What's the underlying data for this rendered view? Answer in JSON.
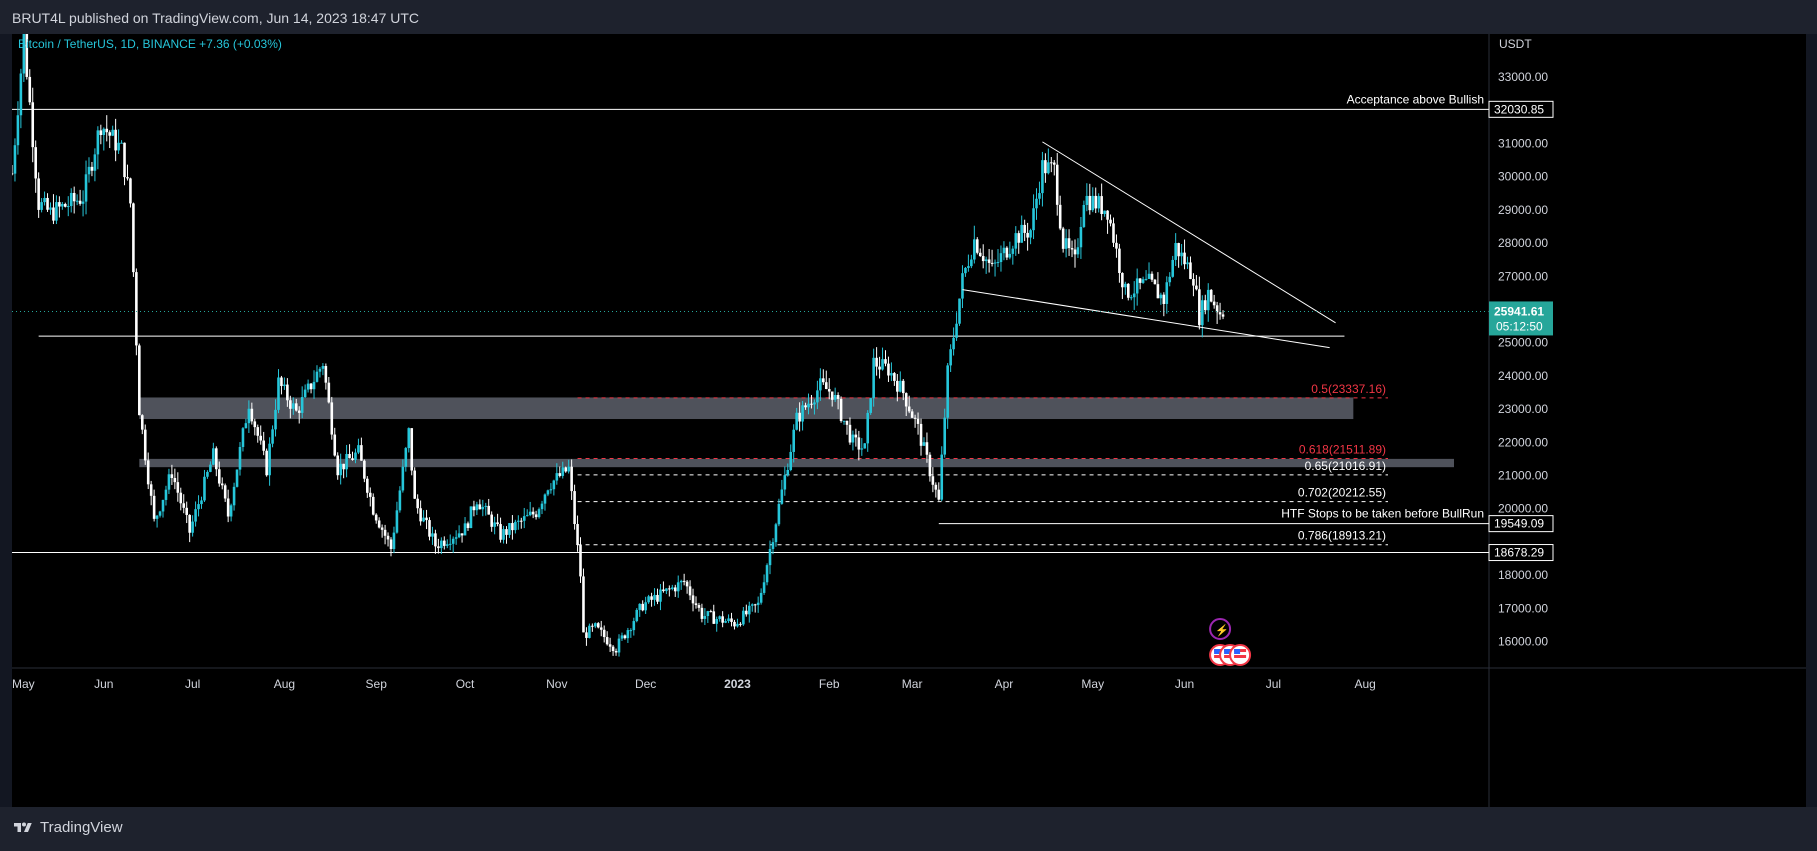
{
  "header": {
    "published": "BRUT4L published on TradingView.com, Jun 14, 2023 18:47 UTC"
  },
  "footer": {
    "brand": "TradingView"
  },
  "symbol_line": "Bitcoin / TetherUS, 1D, BINANCE  +7.36 (+0.03%)",
  "price_axis_unit": "USDT",
  "colors": {
    "up": "#26c6da",
    "down": "#ffffff",
    "background": "#000000",
    "fib_red": "#f23645",
    "zone": "#5d606b"
  },
  "chart_data": {
    "type": "candlestick",
    "symbol": "Bitcoin / TetherUS",
    "interval": "1D",
    "exchange": "BINANCE",
    "change": "+7.36 (+0.03%)",
    "y_axis": {
      "unit": "USDT",
      "ylim": [
        15200,
        34300
      ],
      "ticks": [
        "33000.00",
        "31000.00",
        "30000.00",
        "29000.00",
        "28000.00",
        "27000.00",
        "25000.00",
        "24000.00",
        "23000.00",
        "22000.00",
        "21000.00",
        "20000.00",
        "18000.00",
        "17000.00",
        "16000.00"
      ],
      "tick_values": [
        33000,
        31000,
        30000,
        29000,
        28000,
        27000,
        25000,
        24000,
        23000,
        22000,
        21000,
        20000,
        18000,
        17000,
        16000
      ]
    },
    "x_axis": {
      "labels": [
        "May",
        "Jun",
        "Jul",
        "Aug",
        "Sep",
        "Oct",
        "Nov",
        "Dec",
        "2023",
        "Feb",
        "Mar",
        "Apr",
        "May",
        "Jun",
        "Jul",
        "Aug"
      ],
      "dates": [
        "2022-05-01",
        "2022-06-01",
        "2022-07-01",
        "2022-08-01",
        "2022-09-01",
        "2022-10-01",
        "2022-11-01",
        "2022-12-01",
        "2023-01-01",
        "2023-02-01",
        "2023-03-01",
        "2023-04-01",
        "2023-05-01",
        "2023-06-01",
        "2023-07-01",
        "2023-08-01"
      ],
      "range": [
        "2022-05-01",
        "2023-08-31"
      ]
    },
    "current_price": {
      "value": 25941.61,
      "label": "25941.61",
      "countdown": "05:12:50"
    },
    "price_labels": [
      {
        "label": "32030.85",
        "value": 32030.85
      },
      {
        "label": "19549.09",
        "value": 19549.09
      },
      {
        "label": "18678.29",
        "value": 18678.29
      }
    ],
    "horizontal_lines": [
      {
        "value": 32030.85,
        "text": "Acceptance above Bullish",
        "start": "2022-05-01"
      },
      {
        "value": 25200,
        "text": "",
        "start": "2022-05-10",
        "end": "2023-07-25"
      },
      {
        "value": 19549.09,
        "text": "HTF Stops to be taken before BullRun",
        "start": "2023-03-10"
      },
      {
        "value": 18678.29,
        "text": "",
        "start": "2022-05-01"
      }
    ],
    "fib_levels": [
      {
        "ratio": "0.5",
        "label": "0.5(23337.16)",
        "value": 23337.16,
        "color": "red"
      },
      {
        "ratio": "0.618",
        "label": "0.618(21511.89)",
        "value": 21511.89,
        "color": "red"
      },
      {
        "ratio": "0.65",
        "label": "0.65(21016.91)",
        "value": 21016.91,
        "color": "white"
      },
      {
        "ratio": "0.702",
        "label": "0.702(20212.55)",
        "value": 20212.55,
        "color": "white"
      },
      {
        "ratio": "0.786",
        "label": "0.786(18913.21)",
        "value": 18913.21,
        "color": "white"
      }
    ],
    "zones": [
      {
        "from": 22700,
        "to": 23350,
        "start": "2022-06-13",
        "end": "2023-07-28"
      },
      {
        "from": 21250,
        "to": 21500,
        "start": "2022-06-13",
        "end": "2023-08-31"
      }
    ],
    "trendlines": [
      {
        "from": {
          "date": "2023-04-14",
          "price": 31050
        },
        "to": {
          "date": "2023-07-22",
          "price": 25600
        }
      },
      {
        "from": {
          "date": "2023-03-18",
          "price": 26600
        },
        "to": {
          "date": "2023-07-20",
          "price": 24850
        }
      }
    ],
    "anchors": [
      {
        "date": "2022-05-01",
        "price": 30100
      },
      {
        "date": "2022-05-05",
        "price": 34200
      },
      {
        "date": "2022-05-10",
        "price": 29200
      },
      {
        "date": "2022-05-14",
        "price": 28900
      },
      {
        "date": "2022-05-25",
        "price": 29400
      },
      {
        "date": "2022-05-31",
        "price": 31600
      },
      {
        "date": "2022-06-07",
        "price": 30800
      },
      {
        "date": "2022-06-10",
        "price": 29200
      },
      {
        "date": "2022-06-13",
        "price": 23000
      },
      {
        "date": "2022-06-18",
        "price": 19600
      },
      {
        "date": "2022-06-24",
        "price": 21100
      },
      {
        "date": "2022-06-30",
        "price": 19300
      },
      {
        "date": "2022-07-08",
        "price": 21600
      },
      {
        "date": "2022-07-13",
        "price": 19800
      },
      {
        "date": "2022-07-20",
        "price": 23200
      },
      {
        "date": "2022-07-26",
        "price": 21200
      },
      {
        "date": "2022-07-30",
        "price": 23800
      },
      {
        "date": "2022-08-05",
        "price": 22900
      },
      {
        "date": "2022-08-14",
        "price": 24400
      },
      {
        "date": "2022-08-19",
        "price": 21200
      },
      {
        "date": "2022-08-26",
        "price": 21700
      },
      {
        "date": "2022-08-31",
        "price": 20000
      },
      {
        "date": "2022-09-06",
        "price": 18800
      },
      {
        "date": "2022-09-12",
        "price": 22300
      },
      {
        "date": "2022-09-14",
        "price": 20200
      },
      {
        "date": "2022-09-21",
        "price": 18900
      },
      {
        "date": "2022-10-01",
        "price": 19400
      },
      {
        "date": "2022-10-05",
        "price": 20300
      },
      {
        "date": "2022-10-13",
        "price": 19200
      },
      {
        "date": "2022-10-25",
        "price": 19900
      },
      {
        "date": "2022-10-29",
        "price": 20700
      },
      {
        "date": "2022-11-05",
        "price": 21200
      },
      {
        "date": "2022-11-09",
        "price": 18000
      },
      {
        "date": "2022-11-10",
        "price": 16200
      },
      {
        "date": "2022-11-14",
        "price": 16400
      },
      {
        "date": "2022-11-21",
        "price": 15800
      },
      {
        "date": "2022-11-30",
        "price": 17100
      },
      {
        "date": "2022-12-14",
        "price": 17800
      },
      {
        "date": "2022-12-20",
        "price": 16800
      },
      {
        "date": "2022-12-31",
        "price": 16550
      },
      {
        "date": "2023-01-08",
        "price": 17100
      },
      {
        "date": "2023-01-13",
        "price": 19200
      },
      {
        "date": "2023-01-21",
        "price": 22700
      },
      {
        "date": "2023-01-29",
        "price": 23700
      },
      {
        "date": "2023-02-02",
        "price": 23500
      },
      {
        "date": "2023-02-09",
        "price": 22000
      },
      {
        "date": "2023-02-13",
        "price": 21800
      },
      {
        "date": "2023-02-16",
        "price": 24400
      },
      {
        "date": "2023-02-21",
        "price": 24200
      },
      {
        "date": "2023-02-26",
        "price": 23500
      },
      {
        "date": "2023-03-03",
        "price": 22400
      },
      {
        "date": "2023-03-10",
        "price": 20200
      },
      {
        "date": "2023-03-13",
        "price": 24100
      },
      {
        "date": "2023-03-18",
        "price": 26900
      },
      {
        "date": "2023-03-22",
        "price": 28100
      },
      {
        "date": "2023-03-28",
        "price": 27200
      },
      {
        "date": "2023-04-05",
        "price": 28200
      },
      {
        "date": "2023-04-10",
        "price": 28400
      },
      {
        "date": "2023-04-14",
        "price": 30300
      },
      {
        "date": "2023-04-18",
        "price": 30200
      },
      {
        "date": "2023-04-21",
        "price": 28000
      },
      {
        "date": "2023-04-25",
        "price": 27400
      },
      {
        "date": "2023-04-28",
        "price": 29400
      },
      {
        "date": "2023-05-06",
        "price": 29000
      },
      {
        "date": "2023-05-12",
        "price": 26500
      },
      {
        "date": "2023-05-20",
        "price": 26800
      },
      {
        "date": "2023-05-25",
        "price": 26300
      },
      {
        "date": "2023-05-29",
        "price": 27900
      },
      {
        "date": "2023-06-04",
        "price": 27000
      },
      {
        "date": "2023-06-06",
        "price": 25800
      },
      {
        "date": "2023-06-09",
        "price": 26500
      },
      {
        "date": "2023-06-13",
        "price": 25900
      },
      {
        "date": "2023-06-14",
        "price": 25941.61
      }
    ]
  }
}
